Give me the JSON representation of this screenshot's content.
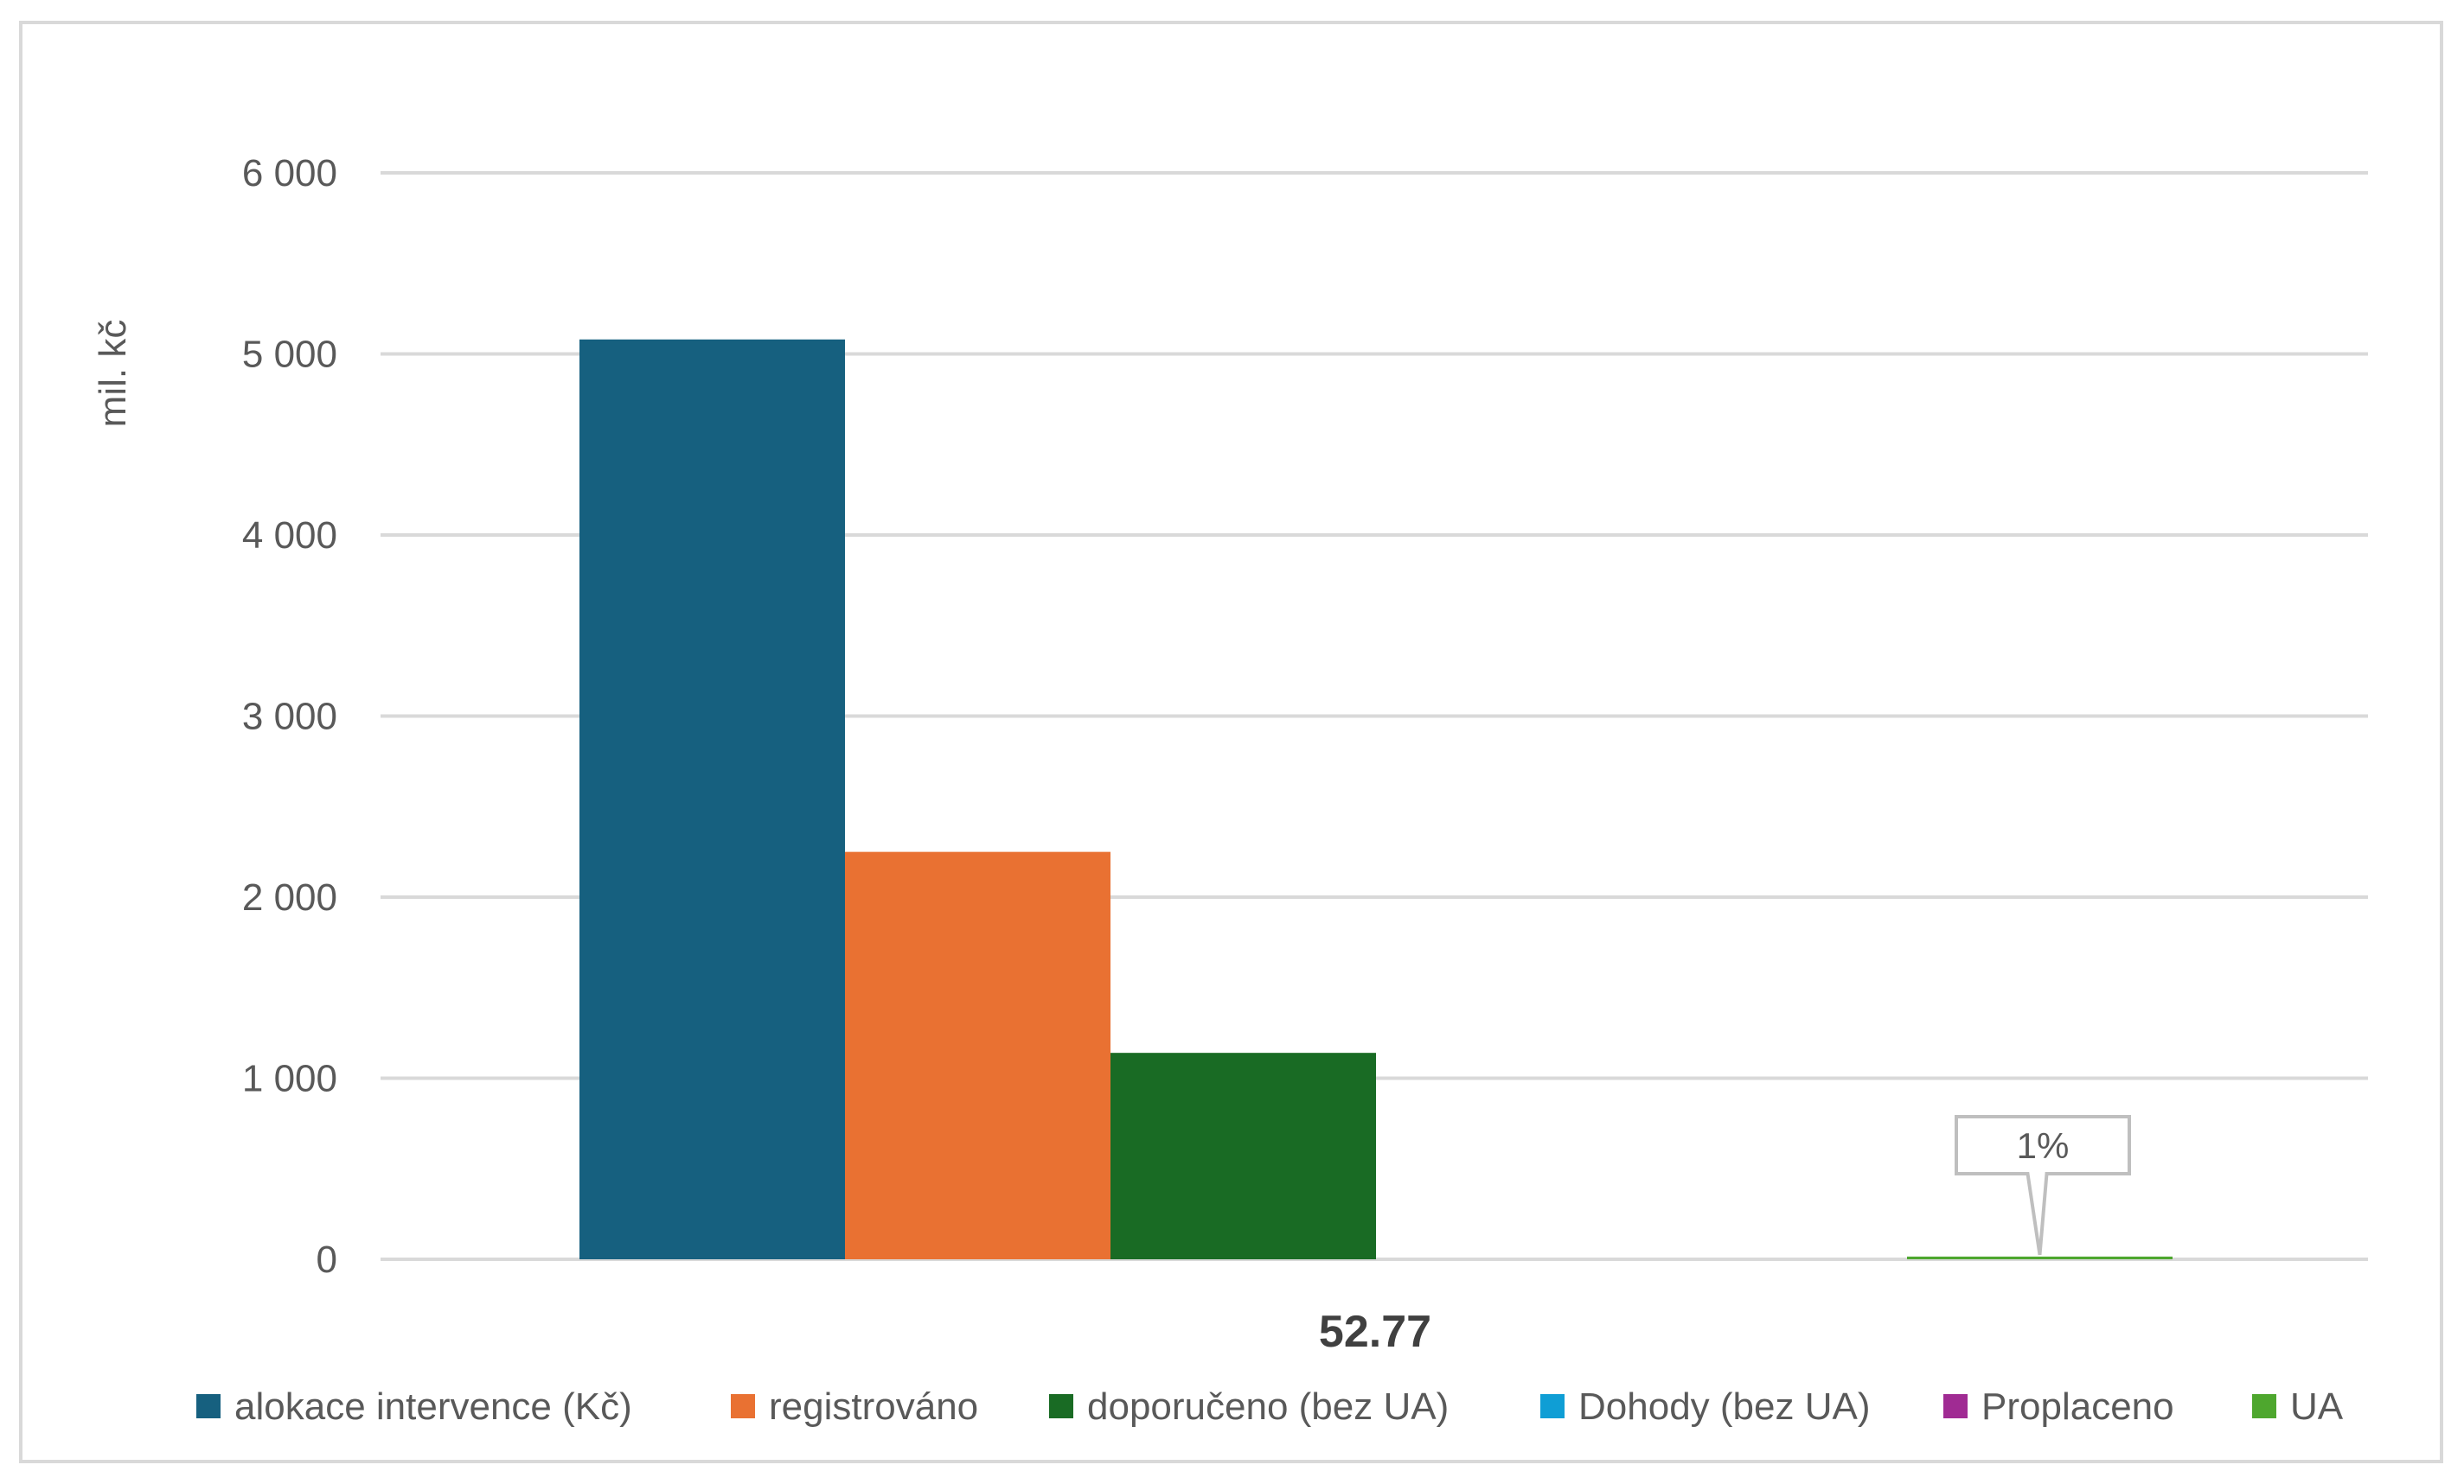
{
  "chart_data": {
    "type": "bar",
    "title": "",
    "xlabel": "",
    "ylabel": "mil. kč",
    "ylim": [
      0,
      6000
    ],
    "yticks": [
      0,
      1000,
      2000,
      3000,
      4000,
      5000,
      6000
    ],
    "ytick_labels": [
      "0",
      "1 000",
      "2 000",
      "3 000",
      "4 000",
      "5 000",
      "6 000"
    ],
    "categories": [
      "52.77"
    ],
    "grid": true,
    "legend_position": "bottom",
    "series": [
      {
        "name": "alokace intervence (Kč)",
        "color": "#16607f",
        "values": [
          5080
        ]
      },
      {
        "name": "registrováno",
        "color": "#e97132",
        "values": [
          2250
        ]
      },
      {
        "name": "doporučeno (bez UA)",
        "color": "#196b24",
        "values": [
          1140
        ]
      },
      {
        "name": "Dohody (bez UA)",
        "color": "#0f9ed5",
        "values": [
          0
        ]
      },
      {
        "name": "Proplaceno",
        "color": "#a02b93",
        "values": [
          0
        ]
      },
      {
        "name": "UA",
        "color": "#4ea72e",
        "values": [
          15
        ]
      }
    ],
    "annotations": [
      {
        "series": "UA",
        "text": "1%"
      }
    ]
  }
}
